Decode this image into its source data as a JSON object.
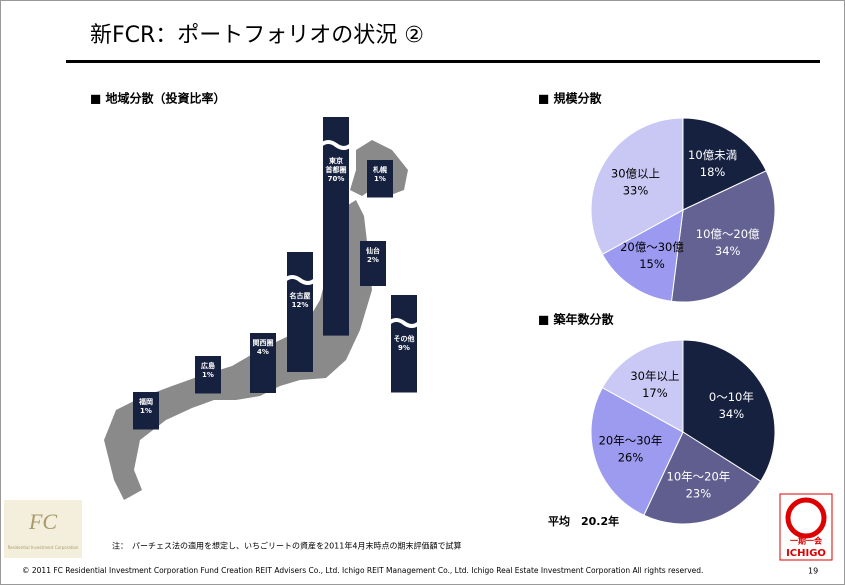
{
  "header": {
    "title": "新FCR：ポートフォリオの状況 ②"
  },
  "chart_data": [
    {
      "type": "mapbar",
      "title": "■ 地域分散（投資比率）",
      "categories": [
        "福岡",
        "広島",
        "関西圏",
        "名古屋",
        "東京\n首都圏",
        "札幌",
        "仙台",
        "その他"
      ],
      "values": [
        1,
        1,
        4,
        12,
        70,
        1,
        2,
        9
      ],
      "value_labels": [
        "1%",
        "1%",
        "4%",
        "12%",
        "70%",
        "1%",
        "2%",
        "9%"
      ],
      "color": "#16213f"
    },
    {
      "type": "pie",
      "title": "■ 規模分散",
      "categories": [
        "10億未満",
        "10億～20億",
        "20億～30億",
        "30億以上"
      ],
      "values": [
        18,
        34,
        15,
        33
      ],
      "value_labels": [
        "18%",
        "34%",
        "15%",
        "33%"
      ],
      "colors": [
        "#16213f",
        "#636292",
        "#9b99f0",
        "#c9c8f5"
      ]
    },
    {
      "type": "pie",
      "title": "■ 築年数分散",
      "categories": [
        "0～10年",
        "10年～20年",
        "20年～30年",
        "30年以上"
      ],
      "values": [
        34,
        23,
        26,
        17
      ],
      "value_labels": [
        "34%",
        "23%",
        "26%",
        "17%"
      ],
      "colors": [
        "#16213f",
        "#5f5e8e",
        "#9d9bef",
        "#cac9f6"
      ],
      "annotation": "平均　20.2年"
    }
  ],
  "note": "注：　パーチェス法の適用を想定し、いちごリートの資産を2011年4月末時点の期末評価額で試算",
  "footer": {
    "copyright": "© 2011 FC Residential Investment Corporation  Fund Creation REIT Advisers Co., Ltd.   Ichigo REIT Management Co., Ltd.   Ichigo Real Estate Investment Corporation   All rights reserved.",
    "page": "19"
  },
  "logos": {
    "fc": "FC",
    "fc_sub": "Residential Investment Corporation",
    "ichigo_jp": "一期一会",
    "ichigo_en": "ICHIGO"
  }
}
